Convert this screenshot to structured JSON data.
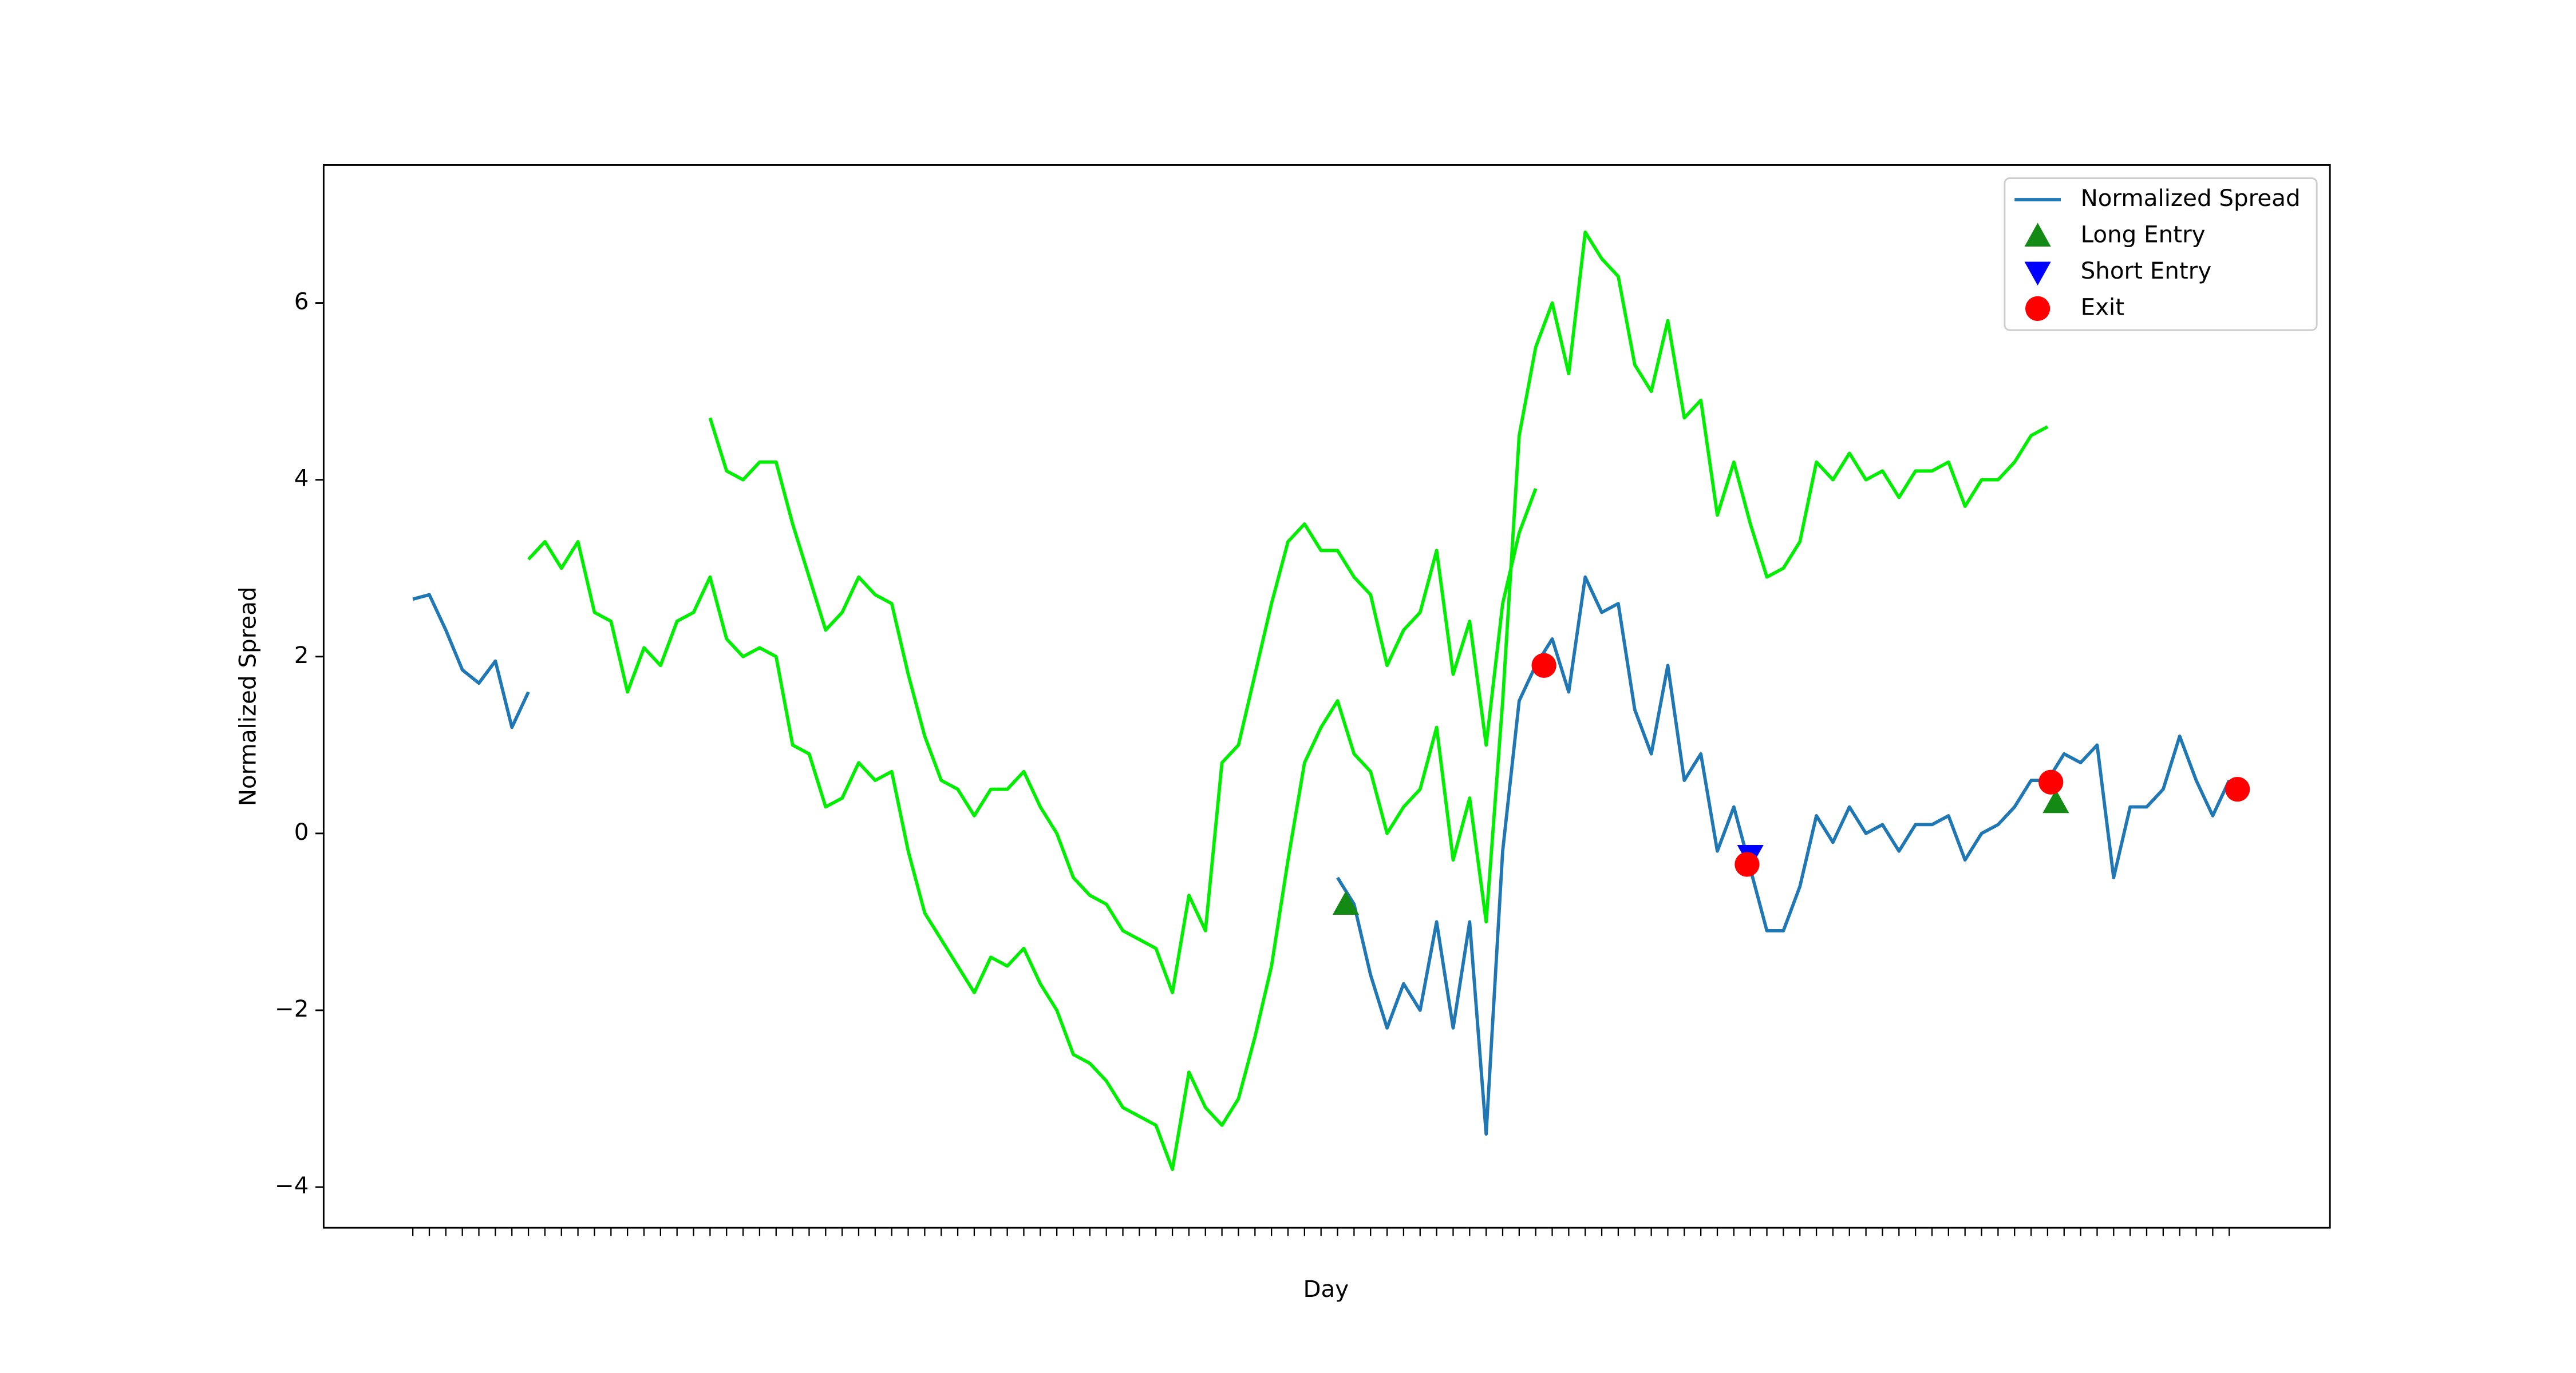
{
  "chart_data": {
    "type": "line",
    "xlabel": "Day",
    "ylabel": "Normalized Spread",
    "x": [
      0,
      1,
      2,
      3,
      4,
      5,
      6,
      7,
      8,
      9,
      10,
      11,
      12,
      13,
      14,
      15,
      16,
      17,
      18,
      19,
      20,
      21,
      22,
      23,
      24,
      25,
      26,
      27,
      28,
      29,
      30,
      31,
      32,
      33,
      34,
      35,
      36,
      37,
      38,
      39,
      40,
      41,
      42,
      43,
      44,
      45,
      46,
      47,
      48,
      49,
      50,
      51,
      52,
      53,
      54,
      55,
      56,
      57,
      58,
      59,
      60,
      61,
      62,
      63,
      64,
      65,
      66,
      67,
      68,
      69,
      70,
      71,
      72,
      73,
      74,
      75,
      76,
      77,
      78,
      79,
      80,
      81,
      82,
      83,
      84,
      85,
      86,
      87,
      88,
      89,
      90,
      91,
      92,
      93,
      94,
      95,
      96,
      97,
      98,
      99,
      100,
      101,
      102,
      103,
      104,
      105,
      106,
      107,
      108,
      109,
      110
    ],
    "xlim": [
      -5.4,
      116.1
    ],
    "ylim": [
      -4.46,
      7.56
    ],
    "yticks": [
      {
        "value": -4,
        "label": "−4"
      },
      {
        "value": -2,
        "label": "−2"
      },
      0,
      2,
      4,
      6
    ],
    "legend": "upper right",
    "series": [
      {
        "name": "Normalized Spread",
        "color": "#1f77b4",
        "values": [
          2.65,
          2.7,
          2.3,
          1.85,
          1.7,
          1.95,
          1.2,
          1.6,
          null,
          null,
          null,
          null,
          null,
          null,
          null,
          null,
          null,
          null,
          null,
          null,
          null,
          null,
          null,
          null,
          null,
          null,
          null,
          null,
          null,
          null,
          null,
          null,
          null,
          null,
          null,
          null,
          null,
          null,
          null,
          null,
          null,
          null,
          null,
          null,
          null,
          null,
          null,
          null,
          null,
          null,
          null,
          null,
          null,
          null,
          null,
          null,
          -0.5,
          -0.8,
          -1.6,
          -2.2,
          -1.7,
          -2.0,
          -1.0,
          -2.2,
          -1.0,
          -3.4,
          -0.2,
          1.5,
          1.9,
          2.2,
          1.6,
          2.9,
          2.5,
          2.6,
          1.4,
          0.9,
          1.9,
          0.6,
          0.9,
          -0.2,
          0.3,
          -0.4,
          -1.1,
          -1.1,
          -0.6,
          0.2,
          -0.1,
          0.3,
          0.0,
          0.1,
          -0.2,
          0.1,
          0.1,
          0.2,
          -0.3,
          0.0,
          0.1,
          0.3,
          0.6,
          0.6,
          0.9,
          0.8,
          1.0,
          -0.5,
          0.3,
          0.3,
          0.5,
          1.1,
          0.6,
          0.2,
          0.6
        ]
      },
      {
        "color": "#00ee00",
        "values": [
          null,
          null,
          null,
          null,
          null,
          null,
          null,
          3.1,
          3.3,
          3.0,
          3.3,
          2.5,
          2.4,
          1.6,
          2.1,
          1.9,
          2.4,
          2.5,
          2.9,
          2.2,
          2.0,
          2.1,
          2.0,
          1.0,
          0.9,
          0.3,
          0.4,
          0.8,
          0.6,
          0.7,
          -0.2,
          -0.9,
          -1.2,
          -1.5,
          -1.8,
          -1.4,
          -1.5,
          -1.3,
          -1.7,
          -2.0,
          -2.5,
          -2.6,
          -2.8,
          -3.1,
          -3.2,
          -3.3,
          -3.8,
          -2.7,
          -3.1,
          -3.3,
          -3.0,
          -2.3,
          -1.5,
          -0.3,
          0.8,
          1.2,
          1.5,
          0.9,
          0.7,
          0.0,
          0.3,
          0.5,
          1.2,
          -0.3,
          0.4,
          -1.0,
          1.5,
          4.5,
          5.5,
          6.0,
          5.2,
          6.8,
          6.5,
          6.3,
          5.3,
          5.0,
          5.8,
          4.7,
          4.9,
          3.6,
          4.2,
          3.5,
          2.9,
          3.0,
          3.3,
          4.2,
          4.0,
          4.3,
          4.0,
          4.1,
          3.8,
          4.1,
          4.1,
          4.2,
          3.7,
          4.0,
          4.0,
          4.2,
          4.5,
          4.6,
          null,
          null,
          null,
          null,
          null,
          null,
          null,
          null,
          null,
          null,
          null
        ]
      },
      {
        "color": "#00ee00",
        "values": [
          null,
          null,
          null,
          null,
          null,
          null,
          null,
          null,
          null,
          null,
          null,
          null,
          null,
          null,
          null,
          null,
          null,
          null,
          4.7,
          4.1,
          4.0,
          4.2,
          4.2,
          3.5,
          2.9,
          2.3,
          2.5,
          2.9,
          2.7,
          2.6,
          1.8,
          1.1,
          0.6,
          0.5,
          0.2,
          0.5,
          0.5,
          0.7,
          0.3,
          0.0,
          -0.5,
          -0.7,
          -0.8,
          -1.1,
          -1.2,
          -1.3,
          -1.8,
          -0.7,
          -1.1,
          0.8,
          1.0,
          1.8,
          2.6,
          3.3,
          3.5,
          3.2,
          3.2,
          2.9,
          2.7,
          1.9,
          2.3,
          2.5,
          3.2,
          1.8,
          2.4,
          1.0,
          2.6,
          3.4,
          3.9,
          null,
          null,
          null,
          null,
          null,
          null,
          null,
          null,
          null,
          null,
          null,
          null,
          null,
          null,
          null,
          null,
          null,
          null,
          null,
          null,
          null,
          null,
          null,
          null,
          null,
          null,
          null,
          null,
          null,
          null,
          null,
          null,
          null,
          null,
          null,
          null,
          null,
          null,
          null,
          null,
          null,
          null
        ]
      }
    ],
    "markers": [
      {
        "name": "Long Entry",
        "color": "#138a13",
        "marker": "triangle-up",
        "x": [
          56.5,
          99.5
        ],
        "values": [
          -0.8,
          0.35
        ]
      },
      {
        "name": "Short Entry",
        "color": "#0000ff",
        "marker": "triangle-down",
        "x": [
          81
        ],
        "values": [
          -0.25
        ]
      },
      {
        "name": "Exit",
        "color": "#ff0000",
        "marker": "circle",
        "x": [
          68.5,
          80.8,
          99.2,
          110.5
        ],
        "values": [
          1.9,
          -0.35,
          0.58,
          0.5
        ]
      }
    ]
  }
}
